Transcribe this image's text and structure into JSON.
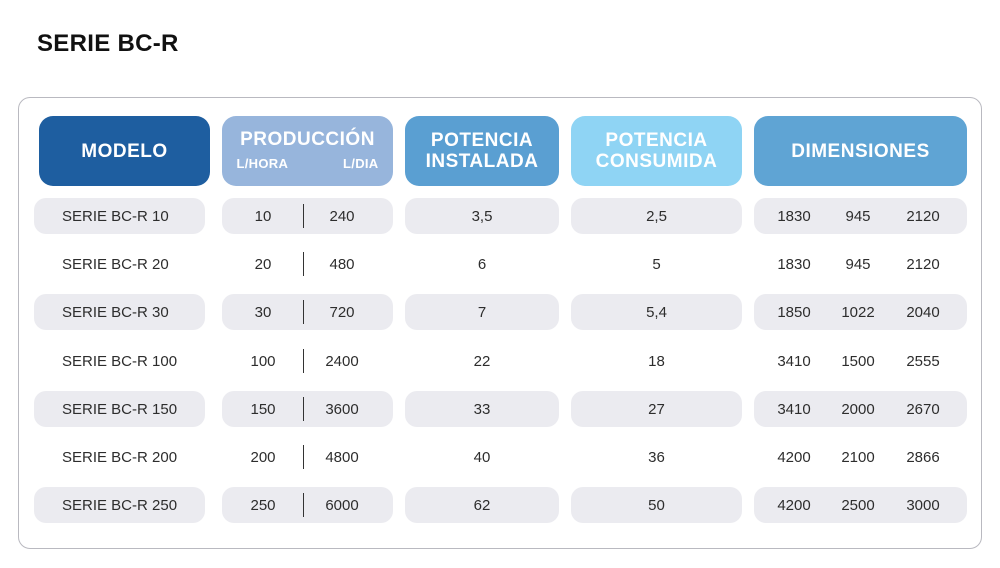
{
  "title": "SERIE BC-R",
  "headers": {
    "modelo": "MODELO",
    "produccion": "PRODUCCIÓN",
    "produccion_hora": "L/HORA",
    "produccion_dia": "L/DIA",
    "potencia_instalada_1": "POTENCIA",
    "potencia_instalada_2": "INSTALADA",
    "potencia_consumida_1": "POTENCIA",
    "potencia_consumida_2": "CONSUMIDA",
    "dimensiones": "DIMENSIONES"
  },
  "rows": [
    {
      "modelo": "SERIE BC-R 10",
      "l_hora": "10",
      "l_dia": "240",
      "instalada": "3,5",
      "consumida": "2,5",
      "dim": [
        "1830",
        "945",
        "2120"
      ]
    },
    {
      "modelo": "SERIE BC-R 20",
      "l_hora": "20",
      "l_dia": "480",
      "instalada": "6",
      "consumida": "5",
      "dim": [
        "1830",
        "945",
        "2120"
      ]
    },
    {
      "modelo": "SERIE BC-R 30",
      "l_hora": "30",
      "l_dia": "720",
      "instalada": "7",
      "consumida": "5,4",
      "dim": [
        "1850",
        "1022",
        "2040"
      ]
    },
    {
      "modelo": "SERIE BC-R 100",
      "l_hora": "100",
      "l_dia": "2400",
      "instalada": "22",
      "consumida": "18",
      "dim": [
        "3410",
        "1500",
        "2555"
      ]
    },
    {
      "modelo": "SERIE BC-R 150",
      "l_hora": "150",
      "l_dia": "3600",
      "instalada": "33",
      "consumida": "27",
      "dim": [
        "3410",
        "2000",
        "2670"
      ]
    },
    {
      "modelo": "SERIE BC-R 200",
      "l_hora": "200",
      "l_dia": "4800",
      "instalada": "40",
      "consumida": "36",
      "dim": [
        "4200",
        "2100",
        "2866"
      ]
    },
    {
      "modelo": "SERIE BC-R 250",
      "l_hora": "250",
      "l_dia": "6000",
      "instalada": "62",
      "consumida": "50",
      "dim": [
        "4200",
        "2500",
        "3000"
      ]
    }
  ],
  "colors": {
    "modelo_header": "#1e5ea0",
    "produccion_header": "#97b5dc",
    "instalada_header": "#5a9fd2",
    "consumida_header": "#8fd4f4",
    "dimensiones_header": "#5fa4d4",
    "row_shade": "#ebebf0"
  }
}
